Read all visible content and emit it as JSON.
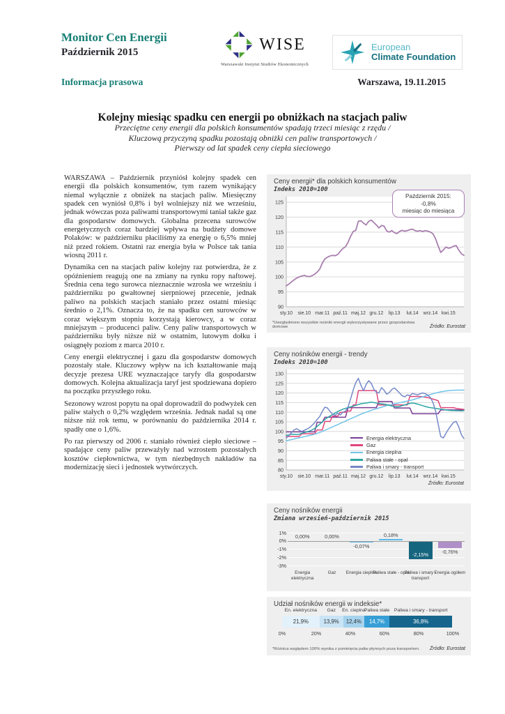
{
  "header": {
    "brand_title": "Monitor Cen Energii",
    "brand_subtitle": "Październik 2015",
    "wise_logo_text": "WISE",
    "wise_logo_caption": "Warszawski Instytut Studiów Ekonomicznych",
    "ecf_logo_line1": "European",
    "ecf_logo_line2": "Climate Foundation",
    "press_label": "Informacja prasowa",
    "dateline": "Warszawa, 19.11.2015"
  },
  "article": {
    "headline": "Kolejny miesiąc spadku cen energii po obniżkach na stacjach paliw",
    "subtitle_lines": [
      "Przeciętne ceny energii dla polskich konsumentów spadają trzeci miesiąc z rzędu /",
      "Kluczową przyczyną spadku pozostają obniżki cen paliw transportowych /",
      "Pierwszy od lat spadek ceny ciepła sieciowego"
    ],
    "paragraphs": [
      "WARSZAWA – Październik przyniósł kolejny spadek cen energii dla polskich konsumentów, tym razem wynikający niemal wyłącznie z obniżek na stacjach paliw. Miesięczny spadek cen wyniósł 0,8% i był wolniejszy niż we wrześniu, jednak wówczas poza paliwami transportowymi taniał także gaz dla gospodarstw domowych. Globalna przecena surowców energetycznych coraz bardziej wpływa na budżety domowe Polaków: w październiku płaciliśmy za energię o 6,5% mniej niż przed rokiem. Ostatni raz energia była w Polsce tak tania wiosną 2011 r.",
      "Dynamika cen na stacjach paliw kolejny raz potwierdza, że z opóźnieniem reagują one na zmiany na rynku ropy naftowej. Średnia cena tego surowca nieznacznie wzrosła we wrześniu i październiku po gwałtownej sierpniowej przecenie, jednak paliwo na polskich stacjach staniało przez ostatni miesiąc średnio o 2,1%. Oznacza to, że na spadku cen surowców w coraz większym stopniu korzystają kierowcy, a w coraz mniejszym – producenci paliw. Ceny paliw transportowych w październiku były niższe niż w ostatnim, lutowym dołku i osiągnęły poziom z marca 2010 r.",
      "Ceny energii elektrycznej i gazu dla gospodarstw domowych pozostały stałe. Kluczowy wpływ na ich kształtowanie mają decyzje prezesa URE wyznaczające taryfy dla gospodarstw domowych. Kolejna aktualizacja taryf jest spodziewana dopiero na początku przyszłego roku.",
      "Sezonowy wzrost popytu na opał doprowadził do podwyżek cen paliw stałych o 0,2% względem września. Jednak nadal są one niższe niż rok temu, w porównaniu do października 2014 r. spadły one o 1,6%.",
      "Po raz pierwszy od 2006 r. staniało również ciepło sieciowe – spadające ceny paliw przeważyły nad wzrostem pozostałych kosztów ciepłownictwa, w tym niezbędnych nakładów na modernizację sieci i jednostek wytwórczych."
    ]
  },
  "colors": {
    "brand_teal": "#157E74",
    "card_bg": "#EFEFEF",
    "annotation_border": "#A87FB5"
  },
  "chart_data": [
    {
      "type": "line",
      "title": "Ceny energii* dla polskich konsumentów",
      "subtitle": "Indeks 2010=100",
      "annotation_lines": [
        "Październik 2015:",
        "-0,8%",
        "miesiąc do miesiąca"
      ],
      "ylim": [
        90,
        125
      ],
      "ytick_step": 5,
      "x_tick_labels": [
        "sty.10",
        "sie.10",
        "mar.11",
        "paź.11",
        "maj.12",
        "gru.12",
        "lip.13",
        "lut.14",
        "wrz.14",
        "kwi.15"
      ],
      "x_tick_positions": [
        0,
        7,
        14,
        21,
        28,
        35,
        42,
        49,
        56,
        63
      ],
      "grid": true,
      "legend_position": "none",
      "series": [
        {
          "name": "Indeks cen energii",
          "color": "#A87FAE",
          "values": [
            97,
            97.6,
            98.3,
            99,
            99.6,
            100,
            100.3,
            100.5,
            100.2,
            100.1,
            100.4,
            100.9,
            101.6,
            102.6,
            104.6,
            106,
            106.6,
            107,
            107.2,
            107.1,
            107.5,
            108.6,
            109.5,
            110.1,
            111.6,
            113.6,
            115.2,
            115.6,
            118.6,
            118.8,
            118,
            117.4,
            118.6,
            119,
            118.2,
            117.4,
            116.4,
            117.2,
            117,
            115.4,
            115,
            115.5,
            114.8,
            114.5,
            115.2,
            115.6,
            115.3,
            115.5,
            115.8,
            116,
            115.5,
            115.3,
            115.5,
            115.2,
            115.5,
            115.3,
            115,
            114.4,
            112.8,
            110.4,
            108.2,
            109,
            110,
            109.6,
            109.8,
            110.3,
            110.5,
            109,
            107.8,
            107.2
          ]
        }
      ],
      "footnote": "*Uwzględniono wszystkie nośniki energii wykorzystywane przez gospodarstwa domowe",
      "source": "Źródło: Eurostat"
    },
    {
      "type": "line",
      "title": "Ceny nośników energii - trendy",
      "subtitle": "Indeks 2010=100",
      "ylim": [
        80,
        130
      ],
      "ytick_step": 5,
      "x_tick_labels": [
        "sty.10",
        "sie.10",
        "mar.11",
        "paź.11",
        "maj.12",
        "gru.12",
        "lip.13",
        "lut.14",
        "wrz.14",
        "kwi.15"
      ],
      "x_tick_positions": [
        0,
        7,
        14,
        21,
        28,
        35,
        42,
        49,
        56,
        63
      ],
      "grid": true,
      "legend_position": "inside-bottom-center",
      "series": [
        {
          "name": "Energia elektryczna",
          "color": "#7A3B96",
          "values": [
            99.8,
            99.8,
            99.8,
            99.8,
            99.8,
            99.8,
            99.8,
            99.8,
            99.8,
            99.8,
            99.8,
            99.8,
            104.8,
            104.8,
            104.8,
            107.4,
            107.4,
            107.4,
            107.4,
            107.4,
            107.4,
            107.4,
            107.4,
            107.4,
            112.4,
            112.4,
            112.4,
            112.4,
            112.4,
            112.4,
            112.4,
            112.4,
            112.4,
            112.4,
            112.4,
            112.4,
            115.6,
            115.6,
            115.6,
            115.6,
            115.6,
            115.6,
            112.2,
            112.2,
            112.2,
            112.2,
            112.2,
            112.2,
            112.2,
            109.2,
            109.2,
            109.2,
            109.2,
            109.2,
            109.2,
            109.2,
            109.2,
            109.2,
            109.2,
            109.2,
            111.2,
            111.2,
            111.2,
            111.2,
            111.2,
            111.2,
            111.2,
            111.2,
            111.2,
            111.2
          ]
        },
        {
          "name": "Gaz",
          "color": "#E0457B",
          "values": [
            97.4,
            97.4,
            97.4,
            97.4,
            97.4,
            97.4,
            98.8,
            98.8,
            98.8,
            98.8,
            98.8,
            98.8,
            100.8,
            100.8,
            100.8,
            105.2,
            105.2,
            105.2,
            108,
            108,
            108,
            110,
            110,
            110,
            110.6,
            110.6,
            113.8,
            113.8,
            121.2,
            121.2,
            121.2,
            121.2,
            121.2,
            121.2,
            121.2,
            121.2,
            113.8,
            113.8,
            113.8,
            113.8,
            113.8,
            113.8,
            113.8,
            113.8,
            113.8,
            113.8,
            113.8,
            113.8,
            118.2,
            118.2,
            118.2,
            118.2,
            118.2,
            118,
            117.8,
            117.6,
            117.2,
            116.8,
            116.4,
            116,
            112.4,
            112.4,
            112.4,
            112.4,
            112.4,
            112.4,
            112,
            111.8,
            111.6,
            111.5
          ]
        },
        {
          "name": "Energia cieplna",
          "color": "#6FC4EA",
          "values": [
            95.2,
            95.5,
            95.8,
            96.1,
            96.4,
            96.7,
            97,
            97.3,
            97.6,
            97.9,
            98.2,
            98.6,
            99,
            99.5,
            100,
            100.6,
            101.2,
            101.8,
            102.4,
            103,
            103.6,
            104.2,
            104.8,
            105.4,
            106,
            106.6,
            107.2,
            107.8,
            108.4,
            109,
            109.5,
            110,
            110.5,
            111,
            111.4,
            111.8,
            112.2,
            112.6,
            113,
            113.4,
            113.7,
            114,
            114.3,
            114.6,
            114.9,
            115.2,
            115.5,
            115.8,
            116.1,
            116.4,
            116.8,
            117.2,
            117.6,
            118,
            118.4,
            118.8,
            119.2,
            119.6,
            120,
            120.3,
            120.6,
            120.8,
            121,
            121.2,
            121.3,
            121.4,
            121.5,
            121.5,
            121.5,
            121.5
          ]
        },
        {
          "name": "Paliwa stałe - opał",
          "color": "#2BA6A4",
          "values": [
            98,
            98.2,
            98.5,
            98.6,
            98.4,
            98.6,
            99,
            99.4,
            99.8,
            100.2,
            100.8,
            101.6,
            102.6,
            103.8,
            105,
            106.2,
            107.2,
            108,
            108.8,
            109.6,
            110.4,
            111,
            111.6,
            112,
            112.4,
            112.8,
            113.2,
            113.6,
            114,
            114.4,
            114.6,
            114.8,
            115,
            115.2,
            115,
            114.8,
            114.6,
            114.4,
            114.2,
            114,
            113.6,
            113.2,
            113,
            112.8,
            113,
            113.4,
            113.8,
            114.2,
            114.6,
            114.8,
            114.6,
            114.2,
            113.8,
            113.4,
            113,
            112.6,
            112.4,
            112.2,
            112,
            111.8,
            111.6,
            111.4,
            111.2,
            111,
            110.9,
            110.9,
            110.8,
            110.8,
            110.7,
            110.9
          ]
        },
        {
          "name": "Paliwa i smary - transport",
          "color": "#7589C8",
          "values": [
            96.6,
            97.8,
            99.4,
            100.8,
            101.4,
            100.6,
            100,
            100.6,
            101.2,
            102,
            103.2,
            104.6,
            106.2,
            107.8,
            110.4,
            112.6,
            112.2,
            110.4,
            109,
            108.4,
            109.6,
            108.6,
            110,
            110.6,
            112.8,
            117,
            121.6,
            125.4,
            127.6,
            124,
            121.2,
            124.4,
            126.4,
            125,
            122,
            120.4,
            120,
            122.8,
            121.4,
            119.4,
            120.2,
            121.8,
            122.6,
            121.4,
            120,
            118.6,
            118,
            119,
            118.6,
            119.8,
            119.4,
            119,
            119.6,
            120,
            119.6,
            118.8,
            117.6,
            115,
            110.6,
            104,
            97.4,
            96.6,
            99,
            101.2,
            103,
            104.8,
            105.2,
            102.4,
            98.4,
            96.3
          ]
        }
      ],
      "source": "Źródło: Eurostat"
    },
    {
      "type": "bar",
      "title": "Ceny nośników energii",
      "subtitle": "Zmiana wrzesień-październik 2015",
      "ylim": [
        -3,
        1
      ],
      "ytick_labels": [
        "1%",
        "0%",
        "-1%",
        "-2%",
        "-3%"
      ],
      "ytick_values": [
        1,
        0,
        -1,
        -2,
        -3
      ],
      "categories": [
        "Energia elektryczna",
        "Gaz",
        "Energia cieplna",
        "Paliwa stałe - opał",
        "Paliwa i smary - transport",
        "Energia ogółem"
      ],
      "values": [
        0.0,
        0.0,
        -0.07,
        0.18,
        -2.15,
        -0.76
      ],
      "value_labels": [
        "0,00%",
        "0,00%",
        "-0,07%",
        "0,18%",
        "-2,15%",
        "-0,76%"
      ],
      "bar_colors": [
        "#59B9E8",
        "#59B9E8",
        "#59B9E8",
        "#59B9E8",
        "#16657F",
        "#AF8FC7"
      ],
      "label_inside": [
        false,
        false,
        false,
        false,
        true,
        false
      ]
    },
    {
      "type": "stacked-bar",
      "title": "Udział nośników energii w indeksie*",
      "axis_labels": [
        "0%",
        "20%",
        "40%",
        "60%",
        "80%",
        "100%"
      ],
      "segments": [
        {
          "label": "En. elektryczna",
          "value": 21.9,
          "value_label": "21,9%",
          "color": "#E3F1FA",
          "text_color": "#333333"
        },
        {
          "label": "Gaz",
          "value": 13.9,
          "value_label": "13,9%",
          "color": "#C9E4F5",
          "text_color": "#333333"
        },
        {
          "label": "En. cieplna",
          "value": 12.4,
          "value_label": "12,4%",
          "color": "#A6D3EE",
          "text_color": "#333333"
        },
        {
          "label": "Paliwa stałe",
          "value": 14.7,
          "value_label": "14,7%",
          "color": "#379FD5",
          "text_color": "#FFFFFF"
        },
        {
          "label": "Paliwa i smary - transport",
          "value": 36.8,
          "value_label": "36,8%",
          "color": "#15658D",
          "text_color": "#FFFFFF"
        }
      ],
      "footnote": "*Różnica względem 100% wynika z pominięcia paliw płynnych poza transportem.",
      "source": "Źródło: Eurostat"
    }
  ]
}
